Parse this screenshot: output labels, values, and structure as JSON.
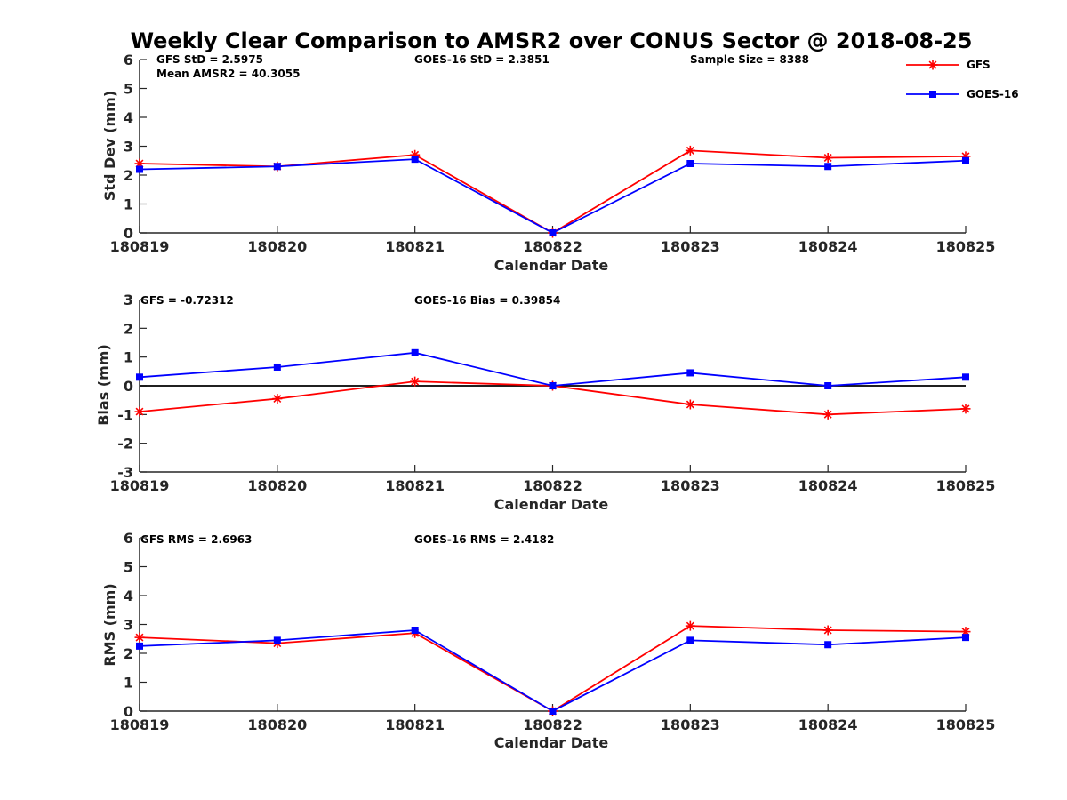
{
  "title": "Weekly Clear Comparison to AMSR2 over CONUS Sector @ 2018-08-25",
  "legend": [
    {
      "name": "GFS",
      "color": "#ff0000",
      "marker": "asterisk"
    },
    {
      "name": "GOES-16",
      "color": "#0000ff",
      "marker": "square"
    }
  ],
  "chart_data": [
    {
      "type": "line",
      "x": [
        "180819",
        "180820",
        "180821",
        "180822",
        "180823",
        "180824",
        "180825"
      ],
      "xlabel": "Calendar Date",
      "ylabel": "Std Dev (mm)",
      "ylim": [
        0,
        6
      ],
      "yticks": [
        "0",
        "1",
        "2",
        "3",
        "4",
        "5",
        "6"
      ],
      "annotations": {
        "a1": "GFS StD = 2.5975",
        "a2": "Mean AMSR2 = 40.3055",
        "a3": "GOES-16 StD = 2.3851",
        "a4": "Sample Size = 8388"
      },
      "series": [
        {
          "name": "GFS",
          "color": "#ff0000",
          "marker": "asterisk",
          "values": [
            2.4,
            2.3,
            2.7,
            0.0,
            2.85,
            2.6,
            2.65
          ]
        },
        {
          "name": "GOES-16",
          "color": "#0000ff",
          "marker": "square",
          "values": [
            2.2,
            2.3,
            2.55,
            0.0,
            2.4,
            2.3,
            2.5
          ]
        }
      ]
    },
    {
      "type": "line",
      "x": [
        "180819",
        "180820",
        "180821",
        "180822",
        "180823",
        "180824",
        "180825"
      ],
      "xlabel": "Calendar Date",
      "ylabel": "Bias (mm)",
      "ylim": [
        -3,
        3
      ],
      "yticks": [
        "-3",
        "-2",
        "-1",
        "0",
        "1",
        "2",
        "3"
      ],
      "zero_line": true,
      "annotations": {
        "a1": "GFS = -0.72312",
        "a3": "GOES-16 Bias  = 0.39854"
      },
      "series": [
        {
          "name": "GFS",
          "color": "#ff0000",
          "marker": "asterisk",
          "values": [
            -0.9,
            -0.45,
            0.15,
            0.0,
            -0.65,
            -1.0,
            -0.8
          ]
        },
        {
          "name": "GOES-16",
          "color": "#0000ff",
          "marker": "square",
          "values": [
            0.3,
            0.65,
            1.15,
            0.0,
            0.45,
            0.0,
            0.3
          ]
        }
      ]
    },
    {
      "type": "line",
      "x": [
        "180819",
        "180820",
        "180821",
        "180822",
        "180823",
        "180824",
        "180825"
      ],
      "xlabel": "Calendar Date",
      "ylabel": "RMS (mm)",
      "ylim": [
        0,
        6
      ],
      "yticks": [
        "0",
        "1",
        "2",
        "3",
        "4",
        "5",
        "6"
      ],
      "annotations": {
        "a1": "GFS RMS = 2.6963",
        "a3": "GOES-16 RMS = 2.4182"
      },
      "series": [
        {
          "name": "GFS",
          "color": "#ff0000",
          "marker": "asterisk",
          "values": [
            2.55,
            2.35,
            2.7,
            0.0,
            2.95,
            2.8,
            2.75
          ]
        },
        {
          "name": "GOES-16",
          "color": "#0000ff",
          "marker": "square",
          "values": [
            2.25,
            2.45,
            2.8,
            0.0,
            2.45,
            2.3,
            2.55
          ]
        }
      ]
    }
  ]
}
